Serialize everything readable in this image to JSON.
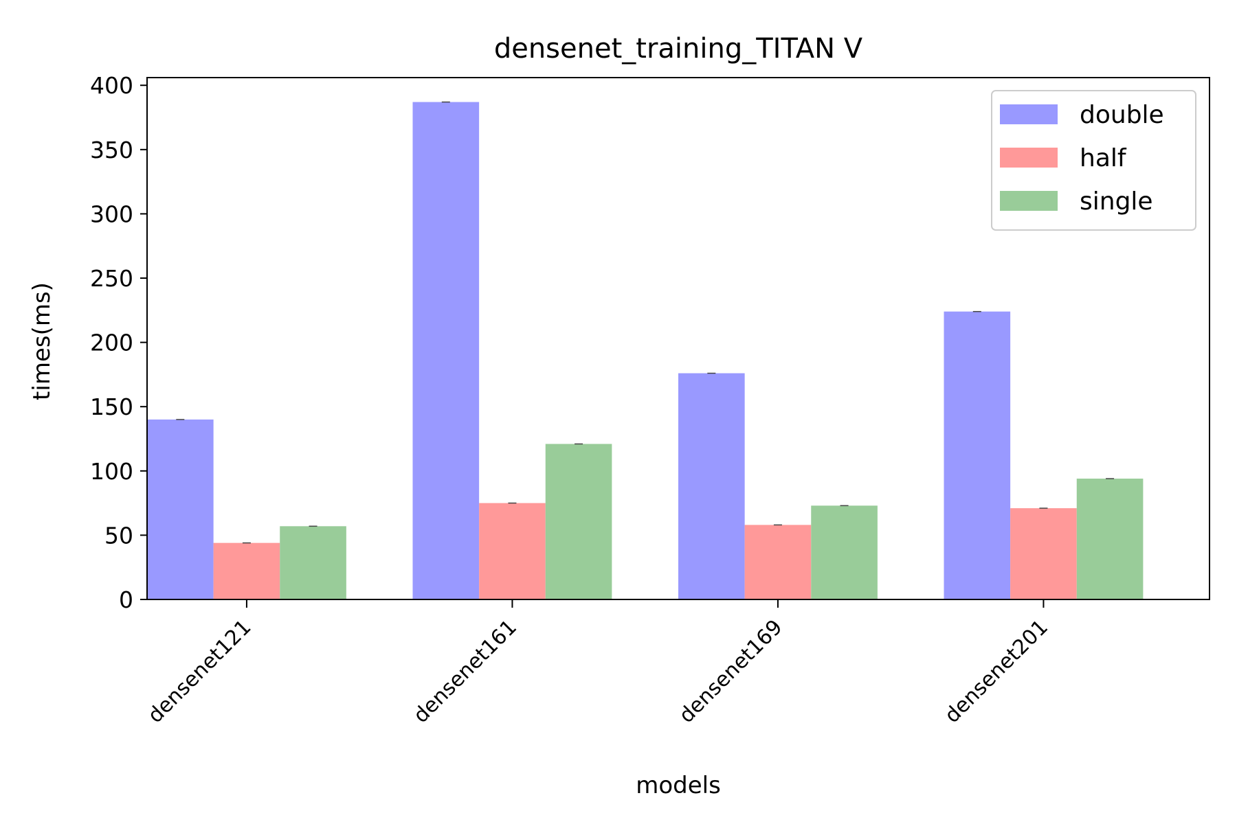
{
  "chart_data": {
    "type": "bar",
    "title": "densenet_training_TITAN V",
    "xlabel": "models",
    "ylabel": "times(ms)",
    "categories": [
      "densenet121",
      "densenet161",
      "densenet169",
      "densenet201"
    ],
    "series": [
      {
        "name": "double",
        "color": "#9999ff",
        "values": [
          140,
          387,
          176,
          224
        ]
      },
      {
        "name": "half",
        "color": "#ff9999",
        "values": [
          44,
          75,
          58,
          71
        ]
      },
      {
        "name": "single",
        "color": "#99cc99",
        "values": [
          57,
          121,
          73,
          94
        ]
      }
    ],
    "ylim": [
      0,
      406
    ],
    "yticks": [
      0,
      50,
      100,
      150,
      200,
      250,
      300,
      350,
      400
    ],
    "legend_position": "top-right",
    "grid": false
  }
}
